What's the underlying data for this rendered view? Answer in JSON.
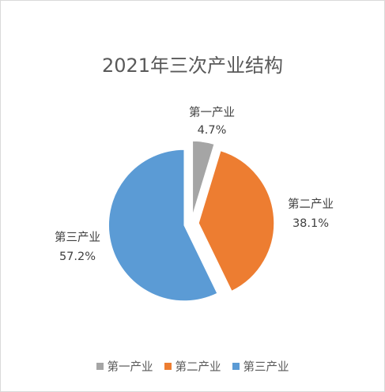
{
  "chart_data": {
    "type": "pie",
    "title": "2021年三次产业结构",
    "categories": [
      "第一产业",
      "第二产业",
      "第三产业"
    ],
    "values": [
      4.7,
      38.1,
      57.2
    ],
    "value_labels": [
      "4.7%",
      "38.1%",
      "57.2%"
    ],
    "colors": [
      "#a5a5a5",
      "#ed7d31",
      "#5b9bd5"
    ],
    "exploded": true,
    "legend_position": "bottom"
  }
}
